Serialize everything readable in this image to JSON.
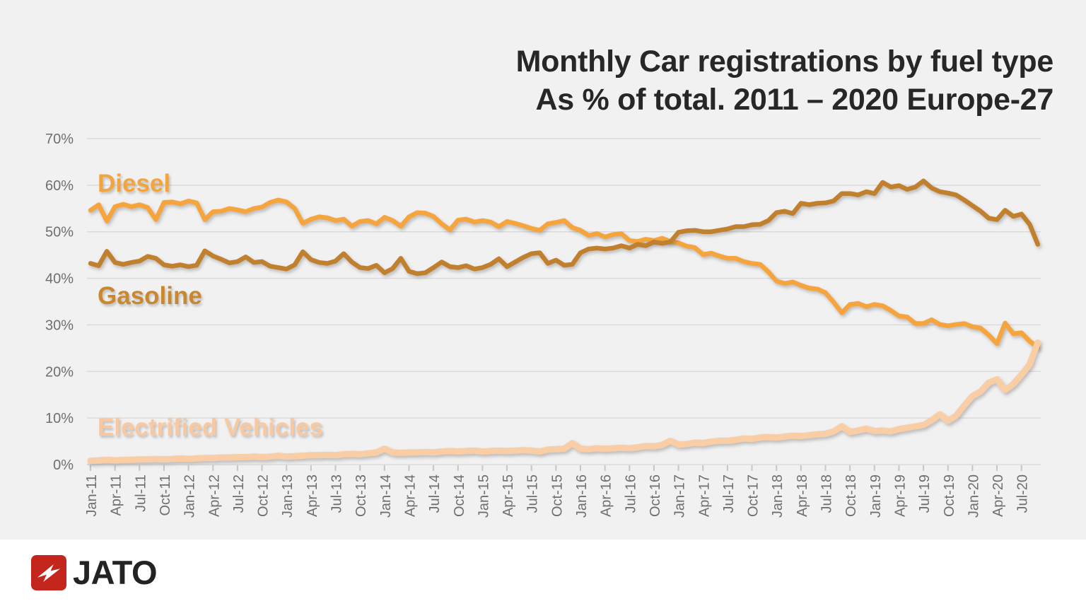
{
  "title": {
    "line1": "Monthly Car registrations by fuel type",
    "line2": "As % of total. 2011 – 2020 Europe-27"
  },
  "footer": {
    "logo_text": "JATO"
  },
  "palette": {
    "background": "#F1F1F2",
    "grid": "#DBDBDB",
    "tick": "#C6C6C6",
    "axis_label": "#6F6F6F",
    "title_text": "#272727",
    "logo_red": "#C4261D",
    "logo_text": "#232323"
  },
  "chart_data": {
    "type": "line",
    "title": "Monthly Car registrations by fuel type As % of total. 2011 - 2020 Europe-27",
    "frequency": "monthly",
    "x_start": "Jan-11",
    "x_end": "Sep-20",
    "ylim": [
      0,
      70
    ],
    "grid": "horizontal",
    "legend_position": "inline-labels",
    "y_tick_labels": [
      "70%",
      "60%",
      "50%",
      "40%",
      "30%",
      "20%",
      "10%",
      "0%"
    ],
    "x_tick_labels": [
      "Jan-11",
      "Apr-11",
      "Jul-11",
      "Oct-11",
      "Jan-12",
      "Apr-12",
      "Jul-12",
      "Oct-12",
      "Jan-13",
      "Apr-13",
      "Jul-13",
      "Oct-13",
      "Jan-14",
      "Apr-14",
      "Jul-14",
      "Oct-14",
      "Jan-15",
      "Apr-15",
      "Jul-15",
      "Oct-15",
      "Jan-16",
      "Apr-16",
      "Jul-16",
      "Oct-16",
      "Jan-17",
      "Apr-17",
      "Jul-17",
      "Oct-17",
      "Jan-18",
      "Apr-18",
      "Jul-18",
      "Oct-18",
      "Jan-19",
      "Apr-19",
      "Jul-19",
      "Oct-19",
      "Jan-20",
      "Apr-20",
      "Jul-20"
    ],
    "series": [
      {
        "name": "Diesel",
        "label": "Diesel",
        "color": "#F6A53E",
        "label_color": "#F2A43F",
        "stroke_width": 6.5,
        "values": [
          54.6,
          55.8,
          52.3,
          55.4,
          55.9,
          55.4,
          55.8,
          55.2,
          52.6,
          56.3,
          56.4,
          56.0,
          56.6,
          56.2,
          52.6,
          54.3,
          54.4,
          55.0,
          54.7,
          54.3,
          55.0,
          55.3,
          56.3,
          56.8,
          56.4,
          55.0,
          51.8,
          52.7,
          53.2,
          53.0,
          52.4,
          52.7,
          51.2,
          52.2,
          52.4,
          51.7,
          53.1,
          52.4,
          51.2,
          53.2,
          54.1,
          54.0,
          53.3,
          51.7,
          50.4,
          52.5,
          52.7,
          52.1,
          52.4,
          52.1,
          51.1,
          52.2,
          51.8,
          51.3,
          50.7,
          50.3,
          51.7,
          52.0,
          52.4,
          50.9,
          50.3,
          49.2,
          49.6,
          48.9,
          49.4,
          49.6,
          48.1,
          47.9,
          48.4,
          48.1,
          48.6,
          47.9,
          47.6,
          46.9,
          46.6,
          45.1,
          45.4,
          44.8,
          44.3,
          44.3,
          43.6,
          43.2,
          43.0,
          41.4,
          39.4,
          38.9,
          39.2,
          38.5,
          37.9,
          37.7,
          36.9,
          34.9,
          32.6,
          34.4,
          34.6,
          33.9,
          34.4,
          34.1,
          33.1,
          31.9,
          31.7,
          30.3,
          30.3,
          31.1,
          30.1,
          29.8,
          30.1,
          30.3,
          29.6,
          29.3,
          27.8,
          26.0,
          30.4,
          28.1,
          28.3,
          26.5,
          25.2
        ]
      },
      {
        "name": "Gasoline",
        "label": "Gasoline",
        "color": "#C1802D",
        "label_color": "#C9882F",
        "stroke_width": 6.5,
        "values": [
          43.2,
          42.7,
          45.8,
          43.4,
          43.0,
          43.4,
          43.7,
          44.7,
          44.3,
          42.9,
          42.6,
          42.9,
          42.5,
          42.8,
          45.9,
          44.8,
          44.1,
          43.3,
          43.6,
          44.6,
          43.4,
          43.6,
          42.6,
          42.3,
          42.0,
          42.9,
          45.7,
          44.0,
          43.4,
          43.2,
          43.7,
          45.3,
          43.5,
          42.3,
          42.1,
          42.8,
          41.2,
          42.1,
          44.3,
          41.5,
          41.0,
          41.2,
          42.3,
          43.5,
          42.5,
          42.3,
          42.7,
          42.0,
          42.3,
          43.0,
          44.2,
          42.5,
          43.5,
          44.5,
          45.3,
          45.5,
          43.2,
          43.9,
          42.8,
          43.0,
          45.5,
          46.3,
          46.5,
          46.3,
          46.5,
          47.0,
          46.5,
          47.3,
          47.0,
          47.8,
          47.5,
          47.8,
          49.9,
          50.2,
          50.3,
          50.0,
          50.0,
          50.3,
          50.6,
          51.1,
          51.1,
          51.5,
          51.6,
          52.4,
          54.1,
          54.4,
          53.9,
          56.1,
          55.8,
          56.1,
          56.2,
          56.6,
          58.2,
          58.2,
          57.9,
          58.6,
          58.2,
          60.6,
          59.6,
          59.9,
          59.1,
          59.6,
          60.9,
          59.4,
          58.6,
          58.3,
          57.9,
          56.8,
          55.6,
          54.4,
          52.9,
          52.6,
          54.6,
          53.3,
          53.8,
          51.6,
          47.3
        ]
      },
      {
        "name": "Electrified Vehicles",
        "label": "Electrified Vehicles",
        "color": "#F9CDA5",
        "label_color": "#F8C9A1",
        "stroke_width": 9,
        "values": [
          0.8,
          0.9,
          1.0,
          0.9,
          1.0,
          1.0,
          1.1,
          1.1,
          1.2,
          1.1,
          1.2,
          1.3,
          1.2,
          1.3,
          1.4,
          1.4,
          1.5,
          1.5,
          1.6,
          1.6,
          1.7,
          1.6,
          1.7,
          1.9,
          1.7,
          1.8,
          1.9,
          2.0,
          2.0,
          2.1,
          2.0,
          2.2,
          2.3,
          2.2,
          2.4,
          2.6,
          3.4,
          2.6,
          2.5,
          2.6,
          2.6,
          2.7,
          2.6,
          2.8,
          2.9,
          2.8,
          2.9,
          3.0,
          2.8,
          2.9,
          3.0,
          2.9,
          3.0,
          3.1,
          3.0,
          2.8,
          3.2,
          3.3,
          3.4,
          4.6,
          3.4,
          3.3,
          3.5,
          3.4,
          3.5,
          3.6,
          3.5,
          3.7,
          4.0,
          3.9,
          4.2,
          5.1,
          4.3,
          4.4,
          4.7,
          4.6,
          4.9,
          5.1,
          5.1,
          5.3,
          5.6,
          5.5,
          5.8,
          5.9,
          5.8,
          6.0,
          6.2,
          6.1,
          6.3,
          6.5,
          6.6,
          7.1,
          8.2,
          7.0,
          7.3,
          7.7,
          7.2,
          7.3,
          7.1,
          7.6,
          7.9,
          8.2,
          8.5,
          9.5,
          10.8,
          9.4,
          10.5,
          12.7,
          14.7,
          15.7,
          17.6,
          18.3,
          16.0,
          17.3,
          19.3,
          21.5,
          26.2
        ]
      }
    ]
  }
}
